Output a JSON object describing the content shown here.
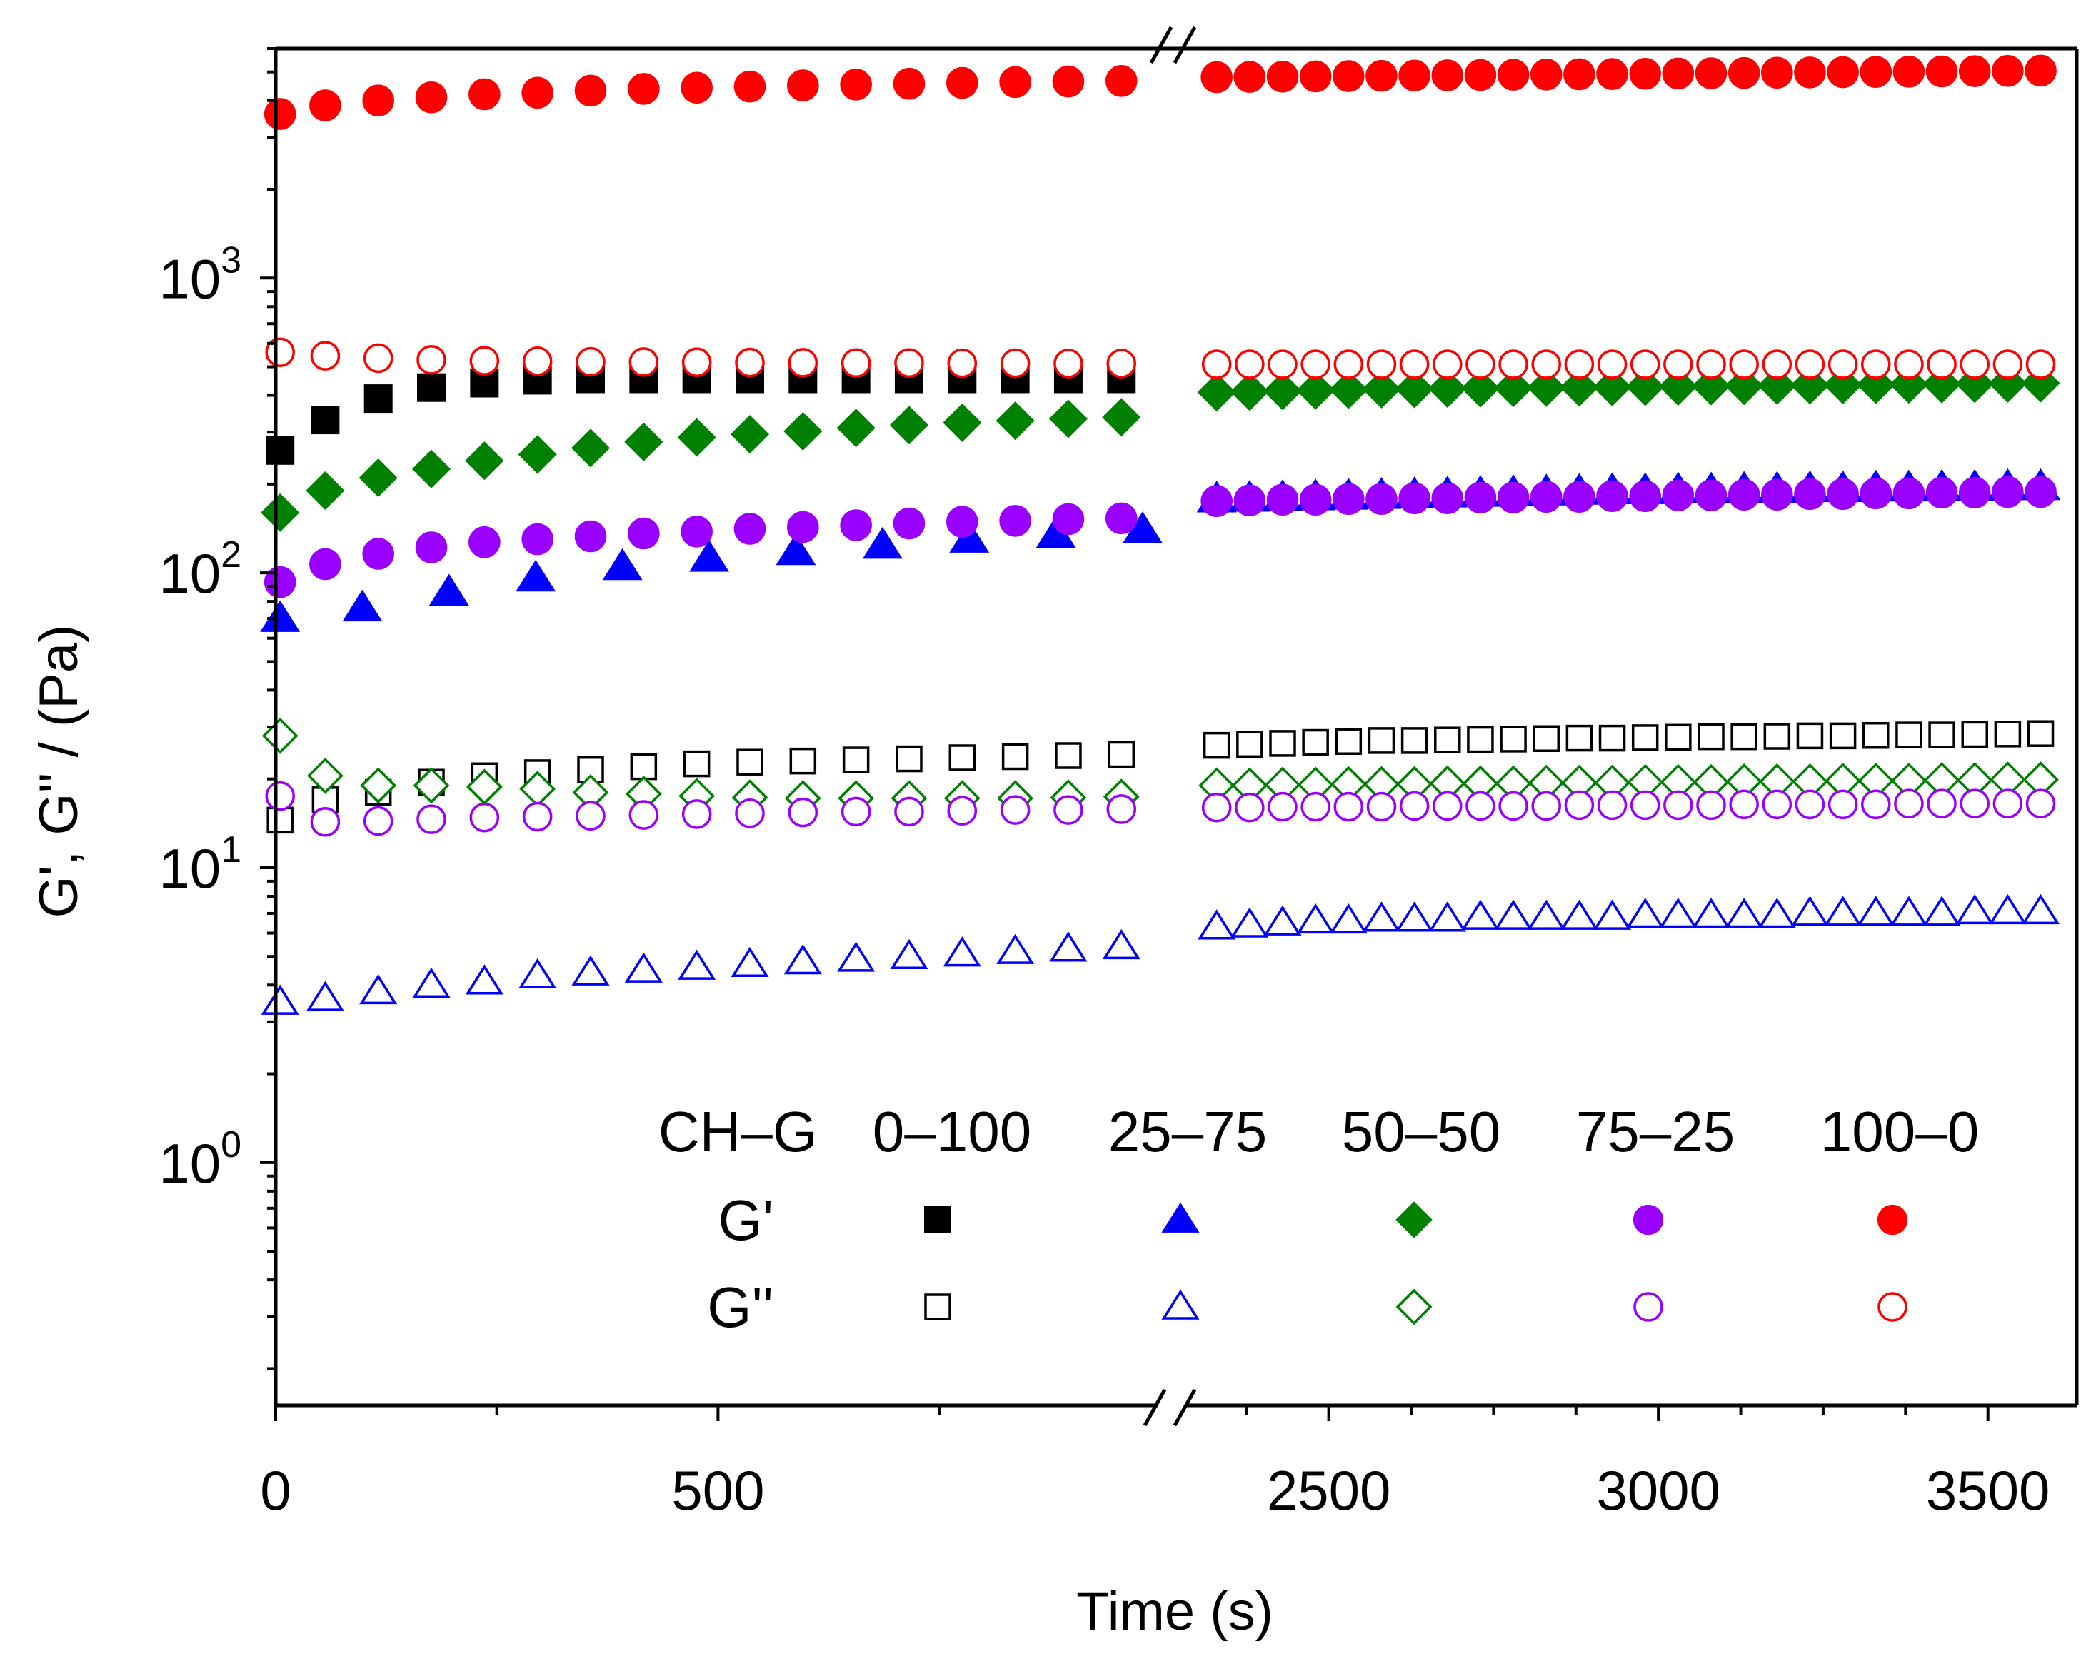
{
  "chart_data": {
    "type": "scatter",
    "title": "",
    "xlabel": "Time (s)",
    "ylabel": "G', G'' / (Pa)",
    "y_scale": "log",
    "ylim": [
      0.15,
      6000
    ],
    "x_break": {
      "left_range": [
        0,
        980
      ],
      "right_range": [
        2300,
        3600
      ]
    },
    "x_ticks": [
      {
        "value": 0,
        "label": "0"
      },
      {
        "value": 500,
        "label": "500"
      },
      {
        "value": 2500,
        "label": "2500"
      },
      {
        "value": 3000,
        "label": "3000"
      },
      {
        "value": 3500,
        "label": "3500"
      }
    ],
    "x_minor_ticks": [
      250,
      750,
      2375,
      2625,
      2750,
      2875,
      3125,
      3250,
      3375
    ],
    "y_ticks": [
      {
        "value": 1,
        "base": "10",
        "exp": "0"
      },
      {
        "value": 10,
        "base": "10",
        "exp": "1"
      },
      {
        "value": 100,
        "base": "10",
        "exp": "2"
      },
      {
        "value": 1000,
        "base": "10",
        "exp": "3"
      }
    ],
    "legend": {
      "position": "bottom-right",
      "header": "CH–G",
      "columns": [
        "0–100",
        "25–75",
        "50–50",
        "75–25",
        "100–0"
      ],
      "row_labels": [
        "G'",
        "G''"
      ]
    },
    "colors": {
      "0-100": "#000000",
      "25-75": "#0000ff",
      "50-50": "#008000",
      "75-25": "#9a00ff",
      "100-0": "#ff0000"
    },
    "series": [
      {
        "name": "0–100 G'",
        "group": "0-100",
        "shape": "square",
        "filled": true,
        "left": {
          "x": [
            5,
            56,
            116,
            176,
            236,
            296,
            356,
            416,
            476,
            536,
            596,
            656,
            716,
            776,
            836,
            896,
            956
          ],
          "y": [
            260,
            330,
            390,
            425,
            440,
            450,
            455,
            455,
            455,
            455,
            455,
            455,
            455,
            455,
            455,
            455,
            455
          ]
        },
        "right": {
          "x": [],
          "y": []
        }
      },
      {
        "name": "0–100 G''",
        "group": "0-100",
        "shape": "square",
        "filled": false,
        "left": {
          "x": [
            5,
            56,
            116,
            176,
            236,
            296,
            356,
            416,
            476,
            536,
            596,
            656,
            716,
            776,
            836,
            896,
            956
          ],
          "y": [
            14.5,
            17,
            18,
            19.5,
            20.5,
            21,
            21.5,
            22,
            22.5,
            22.8,
            23,
            23.2,
            23.4,
            23.6,
            23.8,
            24,
            24.2
          ]
        },
        "right": {
          "x": [
            2330,
            2380,
            2430,
            2480,
            2530,
            2580,
            2630,
            2680,
            2730,
            2780,
            2830,
            2880,
            2930,
            2980,
            3030,
            3080,
            3130,
            3180,
            3230,
            3280,
            3330,
            3380,
            3430,
            3480,
            3530,
            3580
          ],
          "y": [
            26,
            26.2,
            26.4,
            26.6,
            26.8,
            27,
            27,
            27.1,
            27.2,
            27.3,
            27.4,
            27.5,
            27.5,
            27.6,
            27.7,
            27.8,
            27.8,
            27.9,
            28,
            28,
            28.1,
            28.2,
            28.2,
            28.3,
            28.4,
            28.5
          ]
        }
      },
      {
        "name": "25–75 G'",
        "group": "25-75",
        "shape": "triangle",
        "filled": true,
        "left": {
          "x": [
            5,
            98,
            196,
            294,
            392,
            490,
            588,
            686,
            784,
            882,
            980
          ],
          "y": [
            70,
            76,
            86,
            96,
            105,
            112,
            118,
            124,
            130,
            135,
            140
          ]
        },
        "right": {
          "x": [
            2330,
            2380,
            2430,
            2480,
            2530,
            2580,
            2630,
            2680,
            2730,
            2780,
            2830,
            2880,
            2930,
            2980,
            3030,
            3080,
            3130,
            3180,
            3230,
            3280,
            3330,
            3380,
            3430,
            3480,
            3530,
            3580
          ],
          "y": [
            178,
            179,
            180,
            181,
            182,
            183,
            184,
            185,
            186,
            187,
            188,
            189,
            190,
            190,
            191,
            191,
            192,
            192,
            193,
            193,
            194,
            194,
            195,
            195,
            196,
            196
          ]
        }
      },
      {
        "name": "25–75 G''",
        "group": "25-75",
        "shape": "triangle",
        "filled": false,
        "left": {
          "x": [
            5,
            56,
            116,
            176,
            236,
            296,
            356,
            416,
            476,
            536,
            596,
            656,
            716,
            776,
            836,
            896,
            956
          ],
          "y": [
            3.5,
            3.6,
            3.8,
            4.0,
            4.1,
            4.3,
            4.4,
            4.5,
            4.6,
            4.7,
            4.8,
            4.9,
            5.0,
            5.1,
            5.2,
            5.3,
            5.4
          ]
        },
        "right": {
          "x": [
            2330,
            2380,
            2430,
            2480,
            2530,
            2580,
            2630,
            2680,
            2730,
            2780,
            2830,
            2880,
            2930,
            2980,
            3030,
            3080,
            3130,
            3180,
            3230,
            3280,
            3330,
            3380,
            3430,
            3480,
            3530,
            3580
          ],
          "y": [
            6.3,
            6.4,
            6.5,
            6.6,
            6.6,
            6.7,
            6.7,
            6.7,
            6.8,
            6.8,
            6.8,
            6.8,
            6.8,
            6.9,
            6.9,
            6.9,
            6.9,
            6.9,
            7.0,
            7.0,
            7.0,
            7.0,
            7.0,
            7.1,
            7.1,
            7.1
          ]
        }
      },
      {
        "name": "50–50 G'",
        "group": "50-50",
        "shape": "diamond",
        "filled": true,
        "left": {
          "x": [
            5,
            56,
            116,
            176,
            236,
            296,
            356,
            416,
            476,
            536,
            596,
            656,
            716,
            776,
            836,
            896,
            956
          ],
          "y": [
            160,
            190,
            210,
            225,
            240,
            252,
            265,
            278,
            288,
            295,
            302,
            310,
            317,
            323,
            328,
            333,
            337
          ]
        },
        "right": {
          "x": [
            2330,
            2380,
            2430,
            2480,
            2530,
            2580,
            2630,
            2680,
            2730,
            2780,
            2830,
            2880,
            2930,
            2980,
            3030,
            3080,
            3130,
            3180,
            3230,
            3280,
            3330,
            3380,
            3430,
            3480,
            3530,
            3580
          ],
          "y": [
            410,
            412,
            414,
            416,
            418,
            420,
            421,
            422,
            423,
            424,
            425,
            426,
            427,
            428,
            429,
            430,
            431,
            432,
            433,
            434,
            435,
            436,
            437,
            438,
            439,
            440
          ]
        }
      },
      {
        "name": "50–50 G''",
        "group": "50-50",
        "shape": "diamond",
        "filled": false,
        "left": {
          "x": [
            5,
            56,
            116,
            176,
            236,
            296,
            356,
            416,
            476,
            536,
            596,
            656,
            716,
            776,
            836,
            896,
            956
          ],
          "y": [
            28,
            20.5,
            19,
            19,
            18.8,
            18.5,
            18,
            17.8,
            17.5,
            17.3,
            17.2,
            17.2,
            17.2,
            17.2,
            17.2,
            17.3,
            17.4
          ]
        },
        "right": {
          "x": [
            2330,
            2380,
            2430,
            2480,
            2530,
            2580,
            2630,
            2680,
            2730,
            2780,
            2830,
            2880,
            2930,
            2980,
            3030,
            3080,
            3130,
            3180,
            3230,
            3280,
            3330,
            3380,
            3430,
            3480,
            3530,
            3580
          ],
          "y": [
            19,
            19,
            19.1,
            19.1,
            19.2,
            19.2,
            19.2,
            19.3,
            19.3,
            19.3,
            19.4,
            19.4,
            19.4,
            19.5,
            19.5,
            19.5,
            19.6,
            19.6,
            19.6,
            19.7,
            19.7,
            19.7,
            19.8,
            19.8,
            19.9,
            19.9
          ]
        }
      },
      {
        "name": "75–25 G'",
        "group": "75-25",
        "shape": "circle",
        "filled": true,
        "left": {
          "x": [
            5,
            56,
            116,
            176,
            236,
            296,
            356,
            416,
            476,
            536,
            596,
            656,
            716,
            776,
            836,
            896,
            956
          ],
          "y": [
            93,
            107,
            116,
            122,
            127,
            130,
            133,
            136,
            138,
            141,
            143,
            145,
            147,
            149,
            150,
            152,
            153
          ]
        },
        "right": {
          "x": [
            2330,
            2380,
            2430,
            2480,
            2530,
            2580,
            2630,
            2680,
            2730,
            2780,
            2830,
            2880,
            2930,
            2980,
            3030,
            3080,
            3130,
            3180,
            3230,
            3280,
            3330,
            3380,
            3430,
            3480,
            3530,
            3580
          ],
          "y": [
            175,
            176,
            177,
            177,
            178,
            178,
            179,
            179,
            180,
            180,
            181,
            181,
            182,
            182,
            183,
            183,
            184,
            184,
            185,
            185,
            186,
            186,
            187,
            187,
            188,
            188
          ]
        }
      },
      {
        "name": "75–25 G''",
        "group": "75-25",
        "shape": "circle",
        "filled": false,
        "left": {
          "x": [
            5,
            56,
            116,
            176,
            236,
            296,
            356,
            416,
            476,
            536,
            596,
            656,
            716,
            776,
            836,
            896,
            956
          ],
          "y": [
            17.5,
            14.3,
            14.4,
            14.6,
            14.8,
            14.9,
            15,
            15.1,
            15.2,
            15.3,
            15.4,
            15.5,
            15.5,
            15.6,
            15.7,
            15.7,
            15.8
          ]
        },
        "right": {
          "x": [
            2330,
            2380,
            2430,
            2480,
            2530,
            2580,
            2630,
            2680,
            2730,
            2780,
            2830,
            2880,
            2930,
            2980,
            3030,
            3080,
            3130,
            3180,
            3230,
            3280,
            3330,
            3380,
            3430,
            3480,
            3530,
            3580
          ],
          "y": [
            16,
            16,
            16.1,
            16.1,
            16.1,
            16.1,
            16.2,
            16.2,
            16.2,
            16.2,
            16.2,
            16.3,
            16.3,
            16.3,
            16.3,
            16.3,
            16.4,
            16.4,
            16.4,
            16.4,
            16.4,
            16.5,
            16.5,
            16.5,
            16.5,
            16.5
          ]
        }
      },
      {
        "name": "100–0 G'",
        "group": "100-0",
        "shape": "circle",
        "filled": true,
        "left": {
          "x": [
            5,
            56,
            116,
            176,
            236,
            296,
            356,
            416,
            476,
            536,
            596,
            656,
            716,
            776,
            836,
            896,
            956
          ],
          "y": [
            3600,
            3850,
            4000,
            4100,
            4200,
            4250,
            4320,
            4380,
            4420,
            4460,
            4500,
            4530,
            4560,
            4590,
            4620,
            4640,
            4660
          ]
        },
        "right": {
          "x": [
            2330,
            2380,
            2430,
            2480,
            2530,
            2580,
            2630,
            2680,
            2730,
            2780,
            2830,
            2880,
            2930,
            2980,
            3030,
            3080,
            3130,
            3180,
            3230,
            3280,
            3330,
            3380,
            3430,
            3480,
            3530,
            3580
          ],
          "y": [
            4800,
            4810,
            4820,
            4830,
            4840,
            4850,
            4860,
            4870,
            4880,
            4890,
            4900,
            4910,
            4920,
            4930,
            4940,
            4950,
            4960,
            4970,
            4980,
            4990,
            5000,
            5010,
            5020,
            5030,
            5040,
            5050
          ]
        }
      },
      {
        "name": "100–0 G''",
        "group": "100-0",
        "shape": "circle",
        "filled": false,
        "left": {
          "x": [
            5,
            56,
            116,
            176,
            236,
            296,
            356,
            416,
            476,
            536,
            596,
            656,
            716,
            776,
            836,
            896,
            956
          ],
          "y": [
            560,
            545,
            535,
            528,
            524,
            522,
            520,
            519,
            518,
            517,
            516,
            515,
            515,
            514,
            514,
            513,
            513
          ]
        },
        "right": {
          "x": [
            2330,
            2380,
            2430,
            2480,
            2530,
            2580,
            2630,
            2680,
            2730,
            2780,
            2830,
            2880,
            2930,
            2980,
            3030,
            3080,
            3130,
            3180,
            3230,
            3280,
            3330,
            3380,
            3430,
            3480,
            3530,
            3580
          ],
          "y": [
            510,
            510,
            510,
            510,
            510,
            510,
            510,
            510,
            510,
            510,
            510,
            510,
            510,
            510,
            510,
            510,
            510,
            510,
            510,
            510,
            510,
            510,
            510,
            510,
            510,
            510
          ]
        }
      }
    ]
  }
}
